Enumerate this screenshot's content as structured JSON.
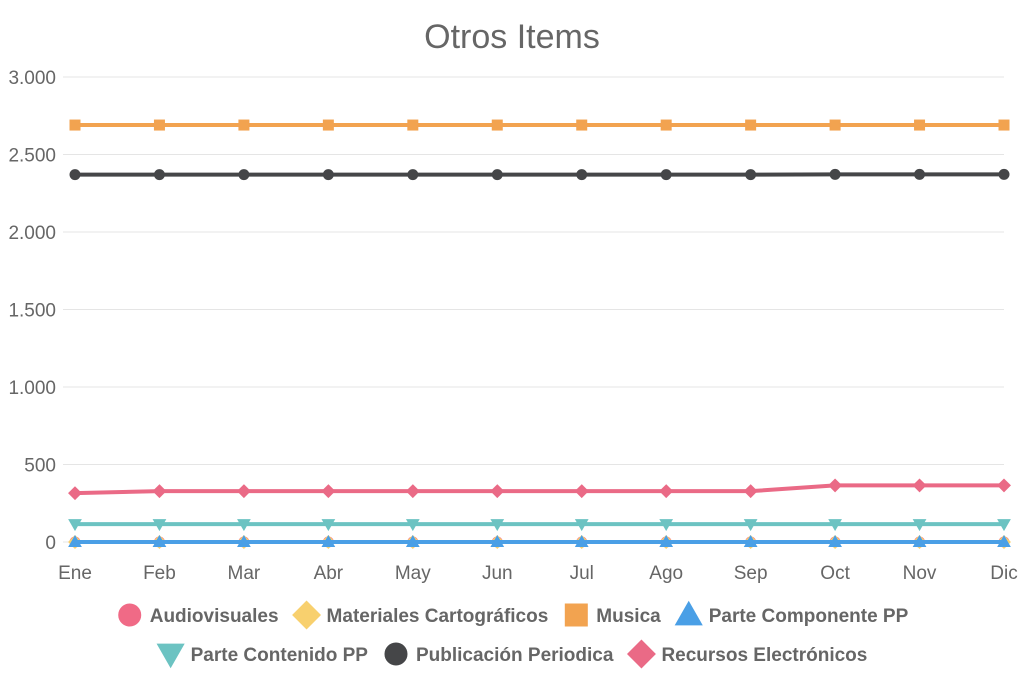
{
  "chart_data": {
    "type": "line",
    "title": "Otros Items",
    "xlabel": "",
    "ylabel": "",
    "categories": [
      "Ene",
      "Feb",
      "Mar",
      "Abr",
      "May",
      "Jun",
      "Jul",
      "Ago",
      "Sep",
      "Oct",
      "Nov",
      "Dic"
    ],
    "ylim": [
      0,
      3000
    ],
    "yticks": [
      0,
      500,
      1000,
      1500,
      2000,
      2500,
      3000
    ],
    "ytick_labels": [
      "0",
      "500",
      "1.000",
      "1.500",
      "2.000",
      "2.500",
      "3.000"
    ],
    "grid": true,
    "legend_position": "bottom",
    "series": [
      {
        "name": "Audiovisuales",
        "color": "#f06a86",
        "marker": "circle",
        "values": [
          0,
          0,
          0,
          0,
          0,
          0,
          0,
          0,
          0,
          0,
          0,
          0
        ]
      },
      {
        "name": "Materiales Cartográficos",
        "color": "#f8d06e",
        "marker": "diamond",
        "values": [
          0,
          0,
          0,
          0,
          0,
          0,
          0,
          0,
          0,
          0,
          0,
          0
        ]
      },
      {
        "name": "Musica",
        "color": "#f2a350",
        "marker": "square",
        "values": [
          2690,
          2690,
          2690,
          2690,
          2690,
          2690,
          2690,
          2690,
          2690,
          2690,
          2690,
          2690
        ]
      },
      {
        "name": "Parte Componente PP",
        "color": "#4a9fe6",
        "marker": "triangle",
        "values": [
          0,
          0,
          0,
          0,
          0,
          0,
          0,
          0,
          0,
          0,
          0,
          0
        ]
      },
      {
        "name": "Parte Contenido PP",
        "color": "#6cc3c2",
        "marker": "triangle-down",
        "values": [
          115,
          115,
          115,
          115,
          115,
          115,
          115,
          115,
          115,
          115,
          115,
          115
        ]
      },
      {
        "name": "Publicación Periodica",
        "color": "#454648",
        "marker": "circle",
        "values": [
          2370,
          2370,
          2370,
          2370,
          2370,
          2370,
          2370,
          2370,
          2370,
          2372,
          2372,
          2372
        ]
      },
      {
        "name": "Recursos Electrónicos",
        "color": "#ea6a86",
        "marker": "diamond",
        "values": [
          315,
          328,
          328,
          328,
          328,
          328,
          328,
          328,
          328,
          365,
          365,
          365
        ]
      }
    ]
  }
}
